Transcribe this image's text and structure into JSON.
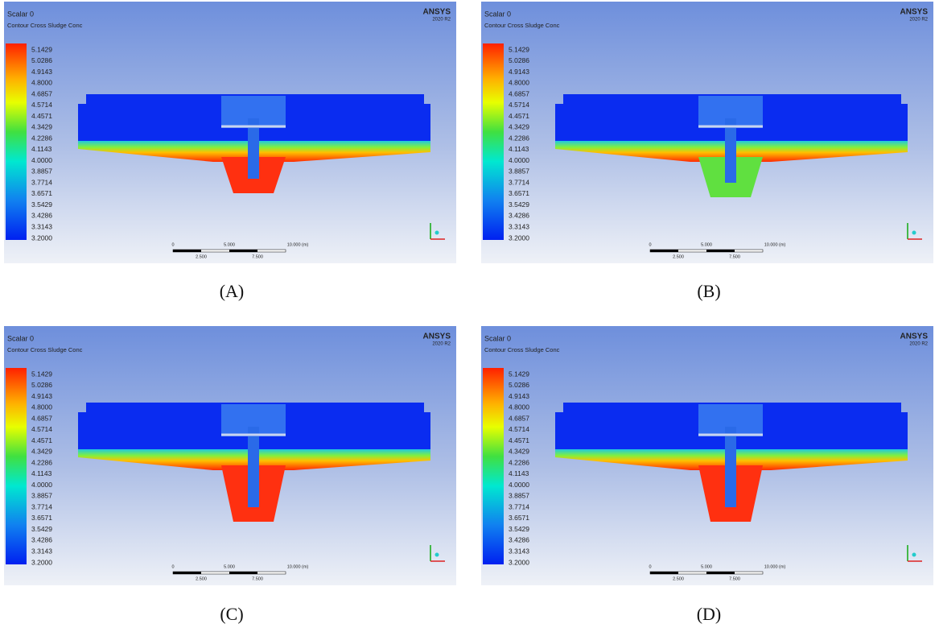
{
  "panels": [
    {
      "label": "(A)",
      "title": "Scalar 0",
      "subtitle": "Contour Cross Sludge Conc",
      "logo": "ANSYS",
      "version": "2020 R2",
      "legend": [
        "5.1429",
        "5.0286",
        "4.9143",
        "4.8000",
        "4.6857",
        "4.5714",
        "4.4571",
        "4.3429",
        "4.2286",
        "4.1143",
        "4.0000",
        "3.8857",
        "3.7714",
        "3.6571",
        "3.5429",
        "3.4286",
        "3.3143",
        "3.2000"
      ],
      "scale": [
        "0",
        "2.500",
        "5.000",
        "7.500",
        "10.000 (m)"
      ]
    },
    {
      "label": "(B)",
      "title": "Scalar 0",
      "subtitle": "Contour Cross Sludge Conc",
      "logo": "ANSYS",
      "version": "2020 R2",
      "legend": [
        "5.1429",
        "5.0286",
        "4.9143",
        "4.8000",
        "4.6857",
        "4.5714",
        "4.4571",
        "4.3429",
        "4.2286",
        "4.1143",
        "4.0000",
        "3.8857",
        "3.7714",
        "3.6571",
        "3.5429",
        "3.4286",
        "3.3143",
        "3.2000"
      ],
      "scale": [
        "0",
        "2.500",
        "5.000",
        "7.500",
        "10.000 (m)"
      ]
    },
    {
      "label": "(C)",
      "title": "Scalar 0",
      "subtitle": "Contour Cross Sludge Conc",
      "logo": "ANSYS",
      "version": "2020 R2",
      "legend": [
        "5.1429",
        "5.0286",
        "4.9143",
        "4.8000",
        "4.6857",
        "4.5714",
        "4.4571",
        "4.3429",
        "4.2286",
        "4.1143",
        "4.0000",
        "3.8857",
        "3.7714",
        "3.6571",
        "3.5429",
        "3.4286",
        "3.3143",
        "3.2000"
      ],
      "scale": [
        "0",
        "2.500",
        "5.000",
        "7.500",
        "10.000 (m)"
      ]
    },
    {
      "label": "(D)",
      "title": "Scalar 0",
      "subtitle": "Contour Cross Sludge Conc",
      "logo": "ANSYS",
      "version": "2020 R2",
      "legend": [
        "5.1429",
        "5.0286",
        "4.9143",
        "4.8000",
        "4.6857",
        "4.5714",
        "4.4571",
        "4.3429",
        "4.2286",
        "4.1143",
        "4.0000",
        "3.8857",
        "3.7714",
        "3.6571",
        "3.5429",
        "3.4286",
        "3.3143",
        "3.2000"
      ],
      "scale": [
        "0",
        "2.500",
        "5.000",
        "7.500",
        "10.000 (m)"
      ]
    }
  ]
}
